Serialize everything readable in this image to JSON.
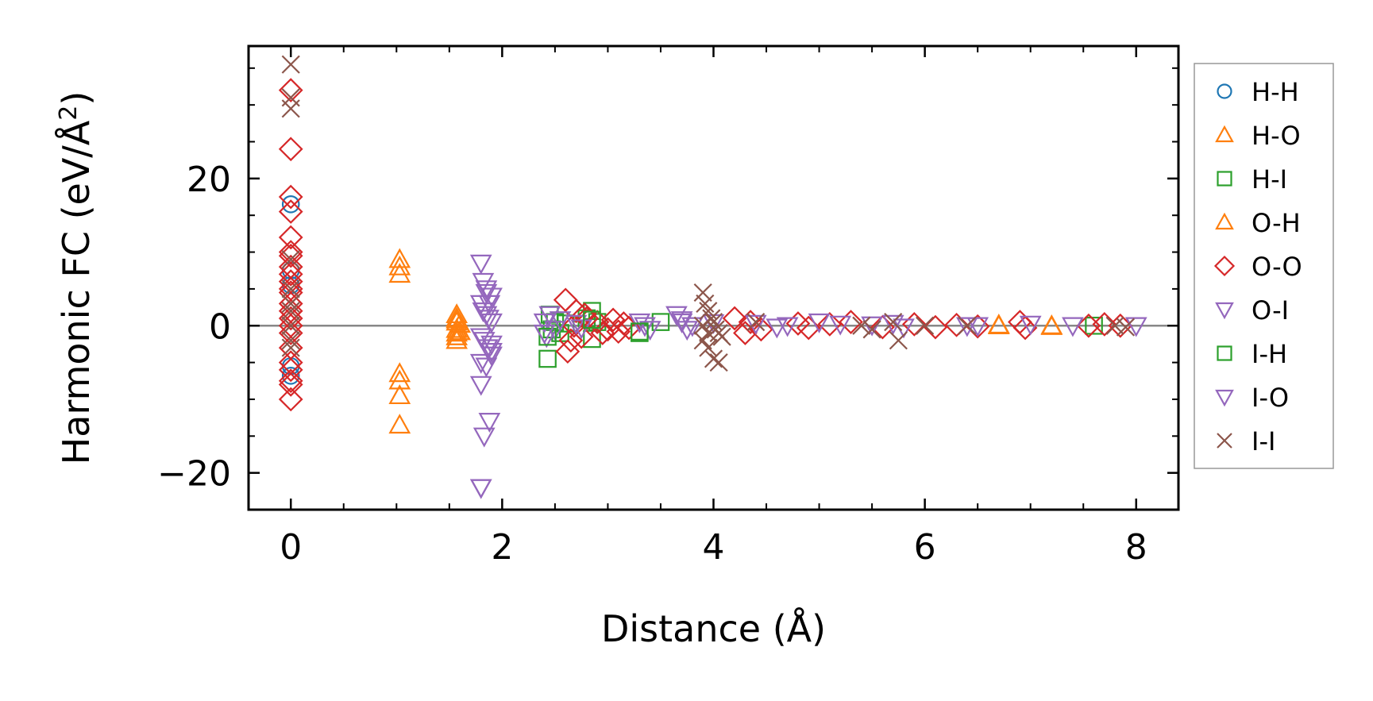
{
  "chart_data": {
    "type": "scatter",
    "xlabel": "Distance (Å)",
    "ylabel_main": "Harmonic FC (eV/Å",
    "ylabel_sup": "2",
    "ylabel_close": ")",
    "xlim": [
      -0.4,
      8.4
    ],
    "ylim": [
      -25,
      38
    ],
    "xticks": [
      0,
      2,
      4,
      6,
      8
    ],
    "yticks": [
      -20,
      0,
      20
    ],
    "xtick_labels": [
      "0",
      "2",
      "4",
      "6",
      "8"
    ],
    "ytick_labels": [
      "−20",
      "0",
      "20"
    ],
    "x_minor_step": 0.5,
    "y_minor_step": 5,
    "zero_line": true,
    "legend_position": "outside-right",
    "series": [
      {
        "name": "H-H",
        "marker": "circle",
        "color": "#1f77b4",
        "x": [
          0,
          0,
          0,
          0,
          0
        ],
        "y": [
          16.5,
          7.5,
          5.5,
          -5.5,
          -6.8
        ]
      },
      {
        "name": "H-O",
        "marker": "triangle-up",
        "color": "#ff7f0e",
        "x": [
          1.03,
          1.03,
          1.03,
          1.03,
          1.03,
          1.03,
          1.57,
          1.57,
          1.57,
          1.57,
          1.57,
          1.57,
          1.57,
          1.6,
          1.6,
          6.7,
          7.2
        ],
        "y": [
          9,
          7,
          -6.5,
          -7.5,
          -9.5,
          -13.5,
          1.5,
          0.5,
          -0.5,
          -1,
          -1.5,
          -2,
          1,
          0.2,
          -0.8,
          0,
          0
        ]
      },
      {
        "name": "H-I",
        "marker": "square",
        "color": "#2ca02c",
        "x": [
          2.43,
          2.45,
          2.5,
          2.55,
          2.6,
          2.85,
          2.85,
          2.9,
          3.3,
          3.5,
          7.6,
          2.47,
          2.8
        ],
        "y": [
          -4.5,
          1.5,
          0.5,
          -1,
          0.3,
          2,
          -1.8,
          0.5,
          -1,
          0.5,
          0,
          -0.5,
          1
        ]
      },
      {
        "name": "O-H",
        "marker": "triangle-up",
        "color": "#ff7f0e",
        "x": [
          1.03,
          1.57,
          6.7,
          7.2
        ],
        "y": [
          8,
          0.8,
          0.1,
          -0.1
        ]
      },
      {
        "name": "O-O",
        "marker": "diamond",
        "color": "#d62728",
        "x": [
          0,
          0,
          0,
          0,
          0,
          0,
          0,
          0,
          0,
          0,
          0,
          0,
          0,
          0,
          0,
          0,
          0,
          0,
          0,
          0,
          0,
          0,
          0,
          2.6,
          2.62,
          2.65,
          2.7,
          2.75,
          2.8,
          2.9,
          3.0,
          3.05,
          3.1,
          3.15,
          3.2,
          2.95,
          2.78,
          2.68,
          4.2,
          4.3,
          4.35,
          4.45,
          4.8,
          4.9,
          5.1,
          5.3,
          5.6,
          5.9,
          6.1,
          6.3,
          6.5,
          6.9,
          6.95,
          7.55,
          7.7,
          7.85
        ],
        "y": [
          32,
          24,
          17.5,
          15.5,
          12,
          10,
          9.5,
          8,
          7,
          6,
          5,
          4.5,
          3,
          2,
          1,
          0,
          -1,
          -3,
          -5,
          -6,
          -7.5,
          -8,
          -10,
          3.5,
          -3.5,
          -2,
          2,
          -1.5,
          1,
          0.5,
          -0.5,
          0.8,
          -0.8,
          0.3,
          -0.3,
          -1,
          1.5,
          0,
          1,
          -1,
          0.5,
          -0.5,
          0.3,
          -0.3,
          0.2,
          0.5,
          -0.2,
          0.2,
          -0.2,
          0.1,
          -0.1,
          0.5,
          -0.3,
          0,
          0.2,
          0
        ]
      },
      {
        "name": "O-I",
        "marker": "triangle-down",
        "color": "#9467bd",
        "x": [
          1.8,
          1.82,
          1.85,
          1.88,
          1.9,
          1.8,
          1.82,
          1.85,
          1.87,
          1.9,
          1.8,
          1.83,
          1.86,
          1.9,
          1.8,
          1.85,
          1.9,
          1.8,
          1.83,
          1.88,
          1.9,
          2.4,
          2.42,
          2.45,
          2.5,
          2.55,
          2.7,
          2.75,
          3.3,
          3.35,
          3.4,
          3.65,
          3.7,
          3.75,
          3.8,
          4.4,
          4.7,
          5.0,
          5.2,
          5.7,
          5.8,
          6.4,
          7.0,
          7.4,
          8.0
        ],
        "y": [
          8.5,
          6,
          4.5,
          3,
          4,
          3,
          2,
          1.5,
          1,
          0.5,
          -1.5,
          -2,
          -3,
          -4,
          -5,
          -5.5,
          -3.5,
          -8,
          -15,
          -13,
          -2.5,
          0.5,
          -1.5,
          1.5,
          -0.5,
          0.8,
          0.3,
          -0.3,
          0.5,
          0,
          -0.5,
          1.5,
          0.5,
          -0.5,
          0,
          0.3,
          0,
          0.5,
          0.2,
          0.3,
          -0.2,
          0,
          0.2,
          0,
          0
        ],
        "extra_x": [
          1.8
        ],
        "extra_y": [
          -22
        ]
      },
      {
        "name": "I-H",
        "marker": "square",
        "color": "#2ca02c",
        "x": [
          2.43,
          2.85,
          3.3
        ],
        "y": [
          -1.5,
          0.8,
          -0.8
        ]
      },
      {
        "name": "I-O",
        "marker": "triangle-down",
        "color": "#9467bd",
        "x": [
          1.8,
          1.85,
          2.4,
          3.7,
          4.0,
          4.6,
          5.5,
          6.5
        ],
        "y": [
          -22,
          5,
          -1,
          0.8,
          0.4,
          -0.2,
          0.1,
          0
        ]
      },
      {
        "name": "I-I",
        "marker": "x",
        "color": "#8c564b",
        "x": [
          0,
          0,
          0,
          0,
          0,
          0,
          0,
          0,
          0,
          0,
          3.9,
          3.92,
          3.95,
          3.98,
          4.0,
          4.02,
          4.05,
          4.08,
          3.9,
          3.95,
          4.0,
          4.05,
          3.9,
          3.95,
          4.4,
          5.4,
          5.5,
          5.7,
          5.75,
          6.0,
          6.4,
          7.8,
          7.9
        ],
        "y": [
          35.5,
          31,
          29.5,
          9,
          5,
          2,
          0,
          -2,
          -3,
          3,
          4.5,
          3,
          2,
          1,
          0.5,
          -0.5,
          -1,
          -1.5,
          -2,
          -3,
          -4.5,
          -5,
          0,
          -1,
          0.5,
          0,
          -0.5,
          0.5,
          -2,
          0,
          0,
          0,
          -0.2
        ]
      }
    ]
  }
}
